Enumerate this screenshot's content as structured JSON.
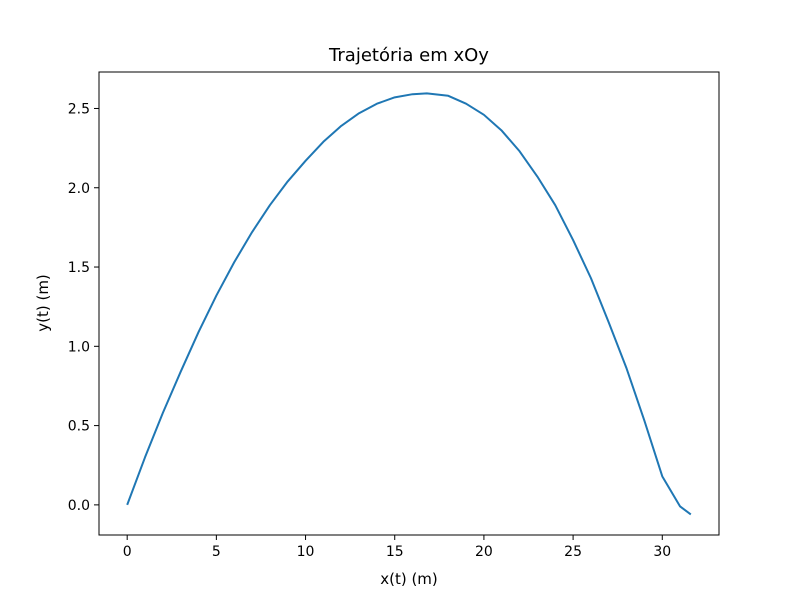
{
  "chart_data": {
    "type": "line",
    "title": "Trajetória em xOy",
    "xlabel": "x(t) (m)",
    "ylabel": "y(t) (m)",
    "xlim": [
      -1.58,
      33.18
    ],
    "ylim": [
      -0.19,
      2.73
    ],
    "xticks": [
      0,
      5,
      10,
      15,
      20,
      25,
      30
    ],
    "yticks": [
      0.0,
      0.5,
      1.0,
      1.5,
      2.0,
      2.5
    ],
    "xtick_labels": [
      "0",
      "5",
      "10",
      "15",
      "20",
      "25",
      "30"
    ],
    "ytick_labels": [
      "0.0",
      "0.5",
      "1.0",
      "1.5",
      "2.0",
      "2.5"
    ],
    "grid": false,
    "legend": "none",
    "series": [
      {
        "color": "#1f77b4",
        "x": [
          0,
          1,
          2,
          3,
          4,
          5,
          6,
          7,
          8,
          9,
          10,
          11,
          12,
          13,
          14,
          15,
          16,
          16.8,
          18,
          19,
          20,
          21,
          22,
          23,
          24,
          25,
          26,
          27,
          28,
          29,
          30,
          31,
          31.6
        ],
        "y": [
          0.0,
          0.3,
          0.58,
          0.84,
          1.09,
          1.32,
          1.53,
          1.72,
          1.89,
          2.04,
          2.17,
          2.29,
          2.39,
          2.47,
          2.53,
          2.57,
          2.59,
          2.595,
          2.58,
          2.53,
          2.46,
          2.36,
          2.23,
          2.07,
          1.89,
          1.67,
          1.43,
          1.15,
          0.86,
          0.53,
          0.18,
          -0.01,
          -0.06
        ]
      }
    ]
  }
}
